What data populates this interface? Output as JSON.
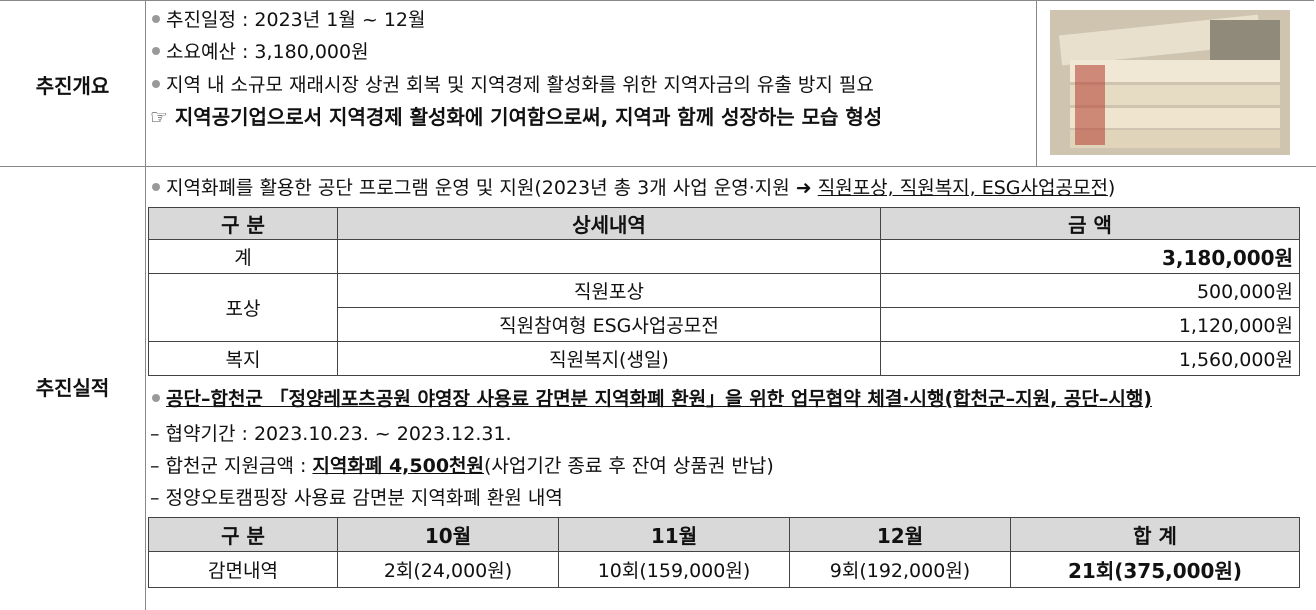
{
  "overview": {
    "label": "추진개요",
    "bullets": [
      "추진일정 : 2023년 1월 ~ 12월",
      "소요예산 :  3,180,000원",
      "지역 내 소규모 재래시장 상권 회복 및 지역경제 활성화를 위한 지역자금의 유출 방지 필요"
    ],
    "emphasis": "☞ 지역공기업으로서 지역경제 활성화에 기여함으로써, 지역과 함께 성장하는 모습 형성"
  },
  "results": {
    "label": "추진실적",
    "intro": {
      "text": "지역화폐를 활용한 공단 프로그램 운영 및 지원(2023년 총 3개 사업 운영·지원 ➜ ",
      "underlined": "직원포상, 직원복지, ESG사업공모전",
      "close": ")"
    },
    "budget_table": {
      "header": [
        "구 분",
        "상세내역",
        "금 액"
      ],
      "total": {
        "category": "계",
        "amount": "3,180,000원"
      },
      "rows": [
        {
          "category": "포상",
          "items": [
            {
              "detail": "직원포상",
              "amount": "500,000원"
            },
            {
              "detail": "직원참여형 ESG사업공모전",
              "amount": "1,120,000원"
            }
          ]
        },
        {
          "category": "복지",
          "items": [
            {
              "detail": "직원복지(생일)",
              "amount": "1,560,000원"
            }
          ]
        }
      ]
    },
    "agreement": "공단–합천군 「정양레포츠공원 야영장 사용료 감면분 지역화폐 환원」을 위한 업무협약 체결·시행(합천군–지원, 공단–시행)",
    "period": "– 협약기간 : 2023.10.23. ~ 2023.12.31.",
    "support": {
      "text": "– 합천군 지원금액 : ",
      "emphasis": "지역화폐 4,500천원",
      "note": "(사업기간 종료 후 잔여 상품권 반납)"
    },
    "history_title": "– 정양오토캠핑장 사용료 감면분 지역화폐 환원 내역",
    "history_table": {
      "header": [
        "구 분",
        "10월",
        "11월",
        "12월",
        "합 계"
      ],
      "row": [
        "감면내역",
        "2회(24,000원)",
        "10회(159,000원)",
        "9회(192,000원)",
        "21회(375,000원)"
      ]
    }
  }
}
